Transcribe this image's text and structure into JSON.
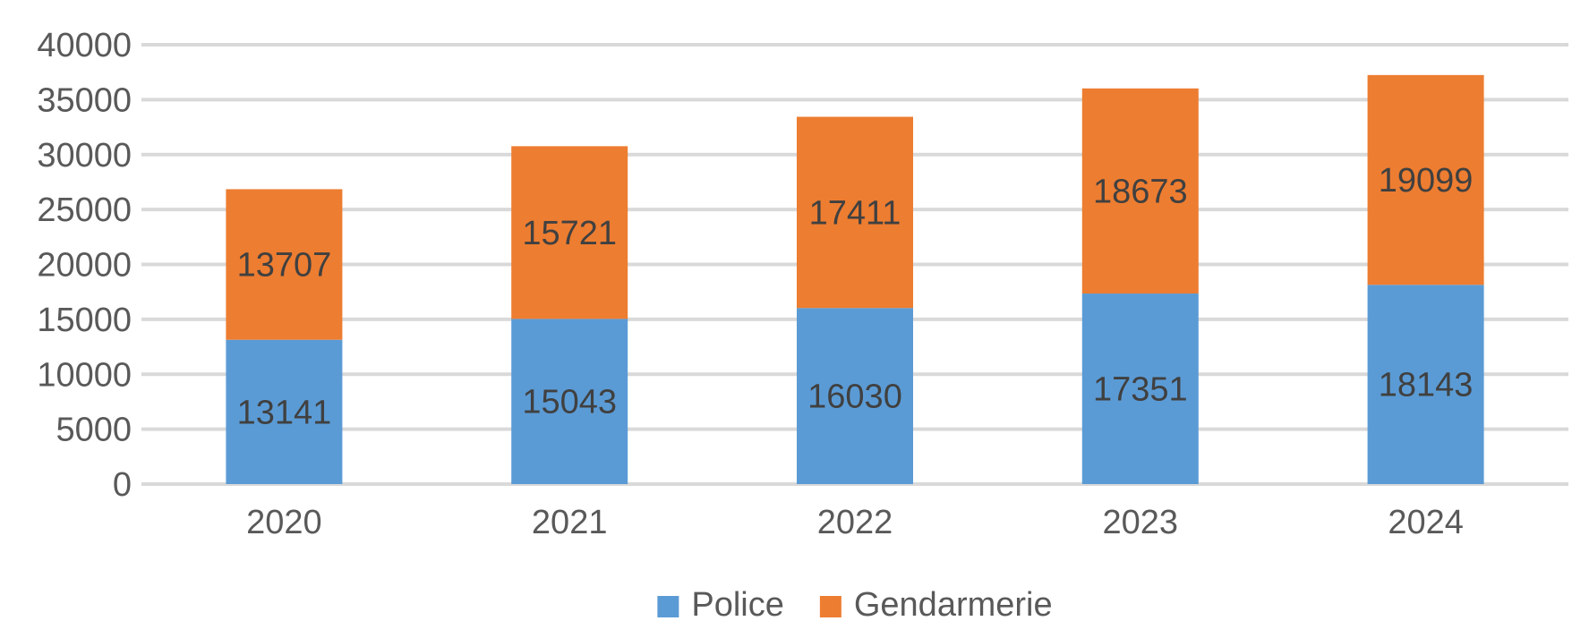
{
  "chart_data": {
    "type": "bar",
    "stacked": true,
    "categories": [
      "2020",
      "2021",
      "2022",
      "2023",
      "2024"
    ],
    "series": [
      {
        "name": "Police",
        "color": "#5B9BD5",
        "values": [
          13141,
          15043,
          16030,
          17351,
          18143
        ]
      },
      {
        "name": "Gendarmerie",
        "color": "#ED7D31",
        "values": [
          13707,
          15721,
          17411,
          18673,
          19099
        ]
      }
    ],
    "title": "",
    "xlabel": "",
    "ylabel": "",
    "ylim": [
      0,
      40000
    ],
    "yticks": [
      0,
      5000,
      10000,
      15000,
      20000,
      25000,
      30000,
      35000,
      40000
    ],
    "grid": true,
    "gridline_color": "#D9D9D9",
    "legend_position": "bottom",
    "data_labels": true
  }
}
